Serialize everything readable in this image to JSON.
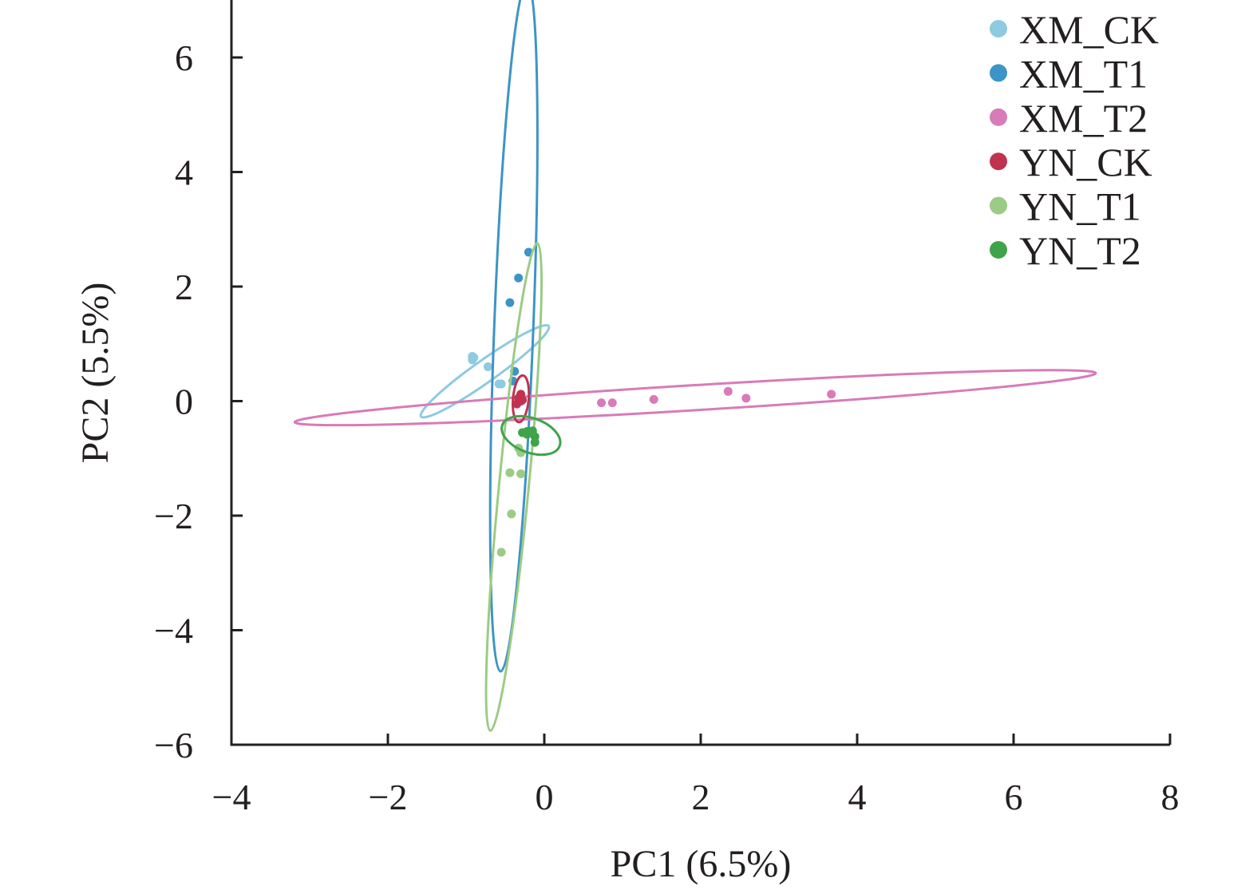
{
  "chart_data": {
    "type": "scatter",
    "title": "",
    "xlabel": "PC1 (6.5%)",
    "ylabel": "PC2 (5.5%)",
    "xlim": [
      -4,
      8
    ],
    "ylim": [
      -6,
      7
    ],
    "xticks": [
      -4,
      -2,
      0,
      2,
      4,
      6,
      8
    ],
    "yticks": [
      -6,
      -4,
      -2,
      0,
      2,
      4,
      6
    ],
    "xtick_labels": [
      "−4",
      "−2",
      "0",
      "2",
      "4",
      "6",
      "8"
    ],
    "ytick_labels": [
      "−6",
      "−4",
      "−2",
      "0",
      "2",
      "4",
      "6"
    ],
    "grid": false,
    "legend_position": "top-right",
    "series": [
      {
        "name": "XM_CK",
        "color": "#8ecae0",
        "points": [
          [
            -0.92,
            0.72
          ],
          [
            -0.9,
            0.76
          ],
          [
            -0.92,
            0.78
          ],
          [
            -0.72,
            0.6
          ],
          [
            -0.58,
            0.3
          ],
          [
            -0.55,
            0.3
          ]
        ],
        "ellipse": {
          "cx": -0.76,
          "cy": 0.52,
          "rx": 1.0,
          "ry": 0.14,
          "angle": 35.3
        }
      },
      {
        "name": "XM_T1",
        "color": "#3d94c6",
        "points": [
          [
            -0.2,
            2.6
          ],
          [
            -0.33,
            2.15
          ],
          [
            -0.44,
            1.72
          ],
          [
            -0.38,
            0.52
          ],
          [
            -0.4,
            0.35
          ]
        ],
        "ellipse": {
          "cx": -0.39,
          "cy": 1.3,
          "rx": 4.41,
          "ry": 0.25,
          "angle": 87.8
        }
      },
      {
        "name": "XM_T2",
        "color": "#d87bb8",
        "points": [
          [
            0.73,
            -0.03
          ],
          [
            0.87,
            -0.03
          ],
          [
            1.4,
            0.03
          ],
          [
            2.35,
            0.17
          ],
          [
            2.58,
            0.05
          ],
          [
            3.67,
            0.12
          ]
        ],
        "ellipse": {
          "cx": 1.93,
          "cy": 0.06,
          "rx": 5.13,
          "ry": 0.16,
          "angle": 3.5
        }
      },
      {
        "name": "YN_CK",
        "color": "#c0334f",
        "points": [
          [
            -0.3,
            0.12
          ],
          [
            -0.33,
            0.05
          ],
          [
            -0.3,
            0.0
          ],
          [
            -0.35,
            -0.05
          ],
          [
            -0.28,
            0.02
          ]
        ],
        "ellipse": {
          "cx": -0.3,
          "cy": 0.04,
          "rx": 0.3,
          "ry": 0.1,
          "angle": 85
        }
      },
      {
        "name": "YN_T1",
        "color": "#9bcb84",
        "points": [
          [
            -0.33,
            -0.82
          ],
          [
            -0.3,
            -0.9
          ],
          [
            -0.44,
            -1.25
          ],
          [
            -0.3,
            -1.27
          ],
          [
            -0.42,
            -1.97
          ],
          [
            -0.55,
            -2.64
          ]
        ],
        "ellipse": {
          "cx": -0.39,
          "cy": -1.5,
          "rx": 3.13,
          "ry": 0.19,
          "angle": 84.5
        }
      },
      {
        "name": "YN_T2",
        "color": "#3fa34a",
        "points": [
          [
            -0.28,
            -0.55
          ],
          [
            -0.22,
            -0.53
          ],
          [
            -0.15,
            -0.52
          ],
          [
            -0.12,
            -0.62
          ],
          [
            -0.12,
            -0.72
          ],
          [
            -0.22,
            -0.58
          ]
        ],
        "ellipse": {
          "cx": -0.17,
          "cy": -0.6,
          "rx": 0.39,
          "ry": 0.22,
          "angle": -20
        }
      }
    ]
  }
}
